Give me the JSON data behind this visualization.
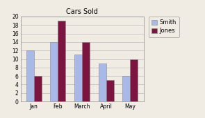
{
  "title": "Cars Sold",
  "categories": [
    "Jan",
    "Feb",
    "March",
    "April",
    "May"
  ],
  "smith": [
    12,
    14,
    11,
    9,
    6
  ],
  "jones": [
    6,
    19,
    14,
    5,
    10
  ],
  "smith_color": "#a8b8e8",
  "jones_color": "#7b1540",
  "ylim": [
    0,
    20
  ],
  "yticks": [
    0,
    2,
    4,
    6,
    8,
    10,
    12,
    14,
    16,
    18,
    20
  ],
  "legend_labels": [
    "Smith",
    "Jones"
  ],
  "bar_width": 0.32,
  "background_color": "#f0ece4",
  "plot_bg_color": "#f0ece4",
  "title_fontsize": 7,
  "tick_fontsize": 5.5,
  "legend_fontsize": 6
}
